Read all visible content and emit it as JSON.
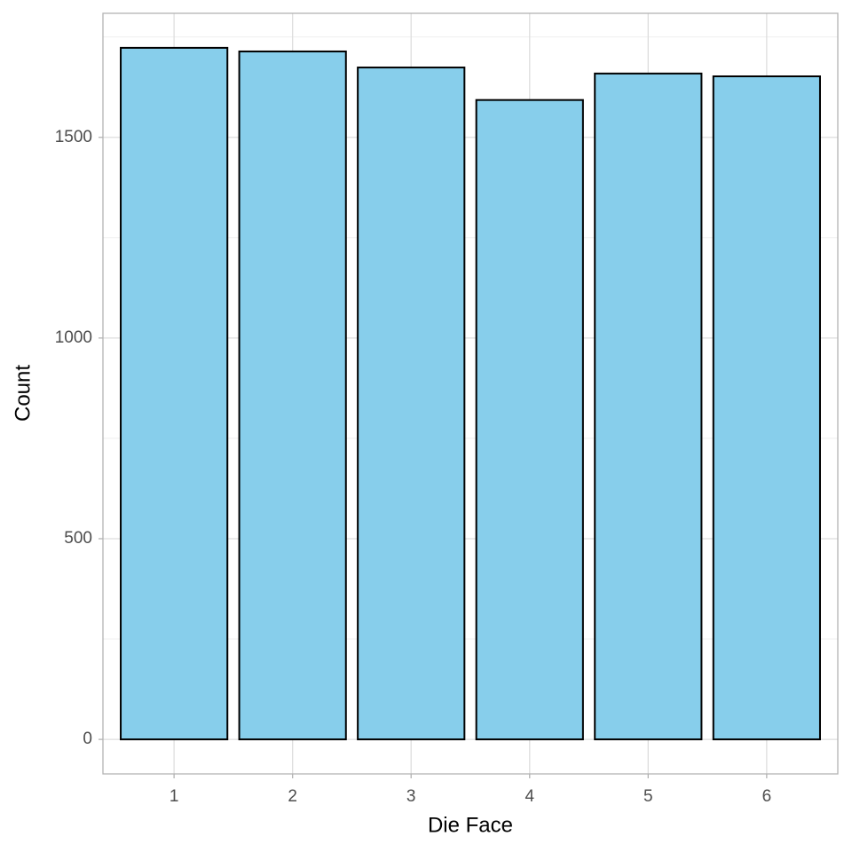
{
  "chart_data": {
    "type": "bar",
    "x_label": "Die Face",
    "y_label": "Count",
    "categories": [
      "1",
      "2",
      "3",
      "4",
      "5",
      "6"
    ],
    "values": [
      1723,
      1714,
      1674,
      1593,
      1659,
      1652
    ],
    "color": "#87ceeb",
    "edge_color": "#000000",
    "ylim": [
      -86,
      1809
    ],
    "yticks": [
      0,
      500,
      1000,
      1500
    ],
    "minor_yticks": [
      250,
      750,
      1250,
      1750
    ],
    "grid": true
  }
}
